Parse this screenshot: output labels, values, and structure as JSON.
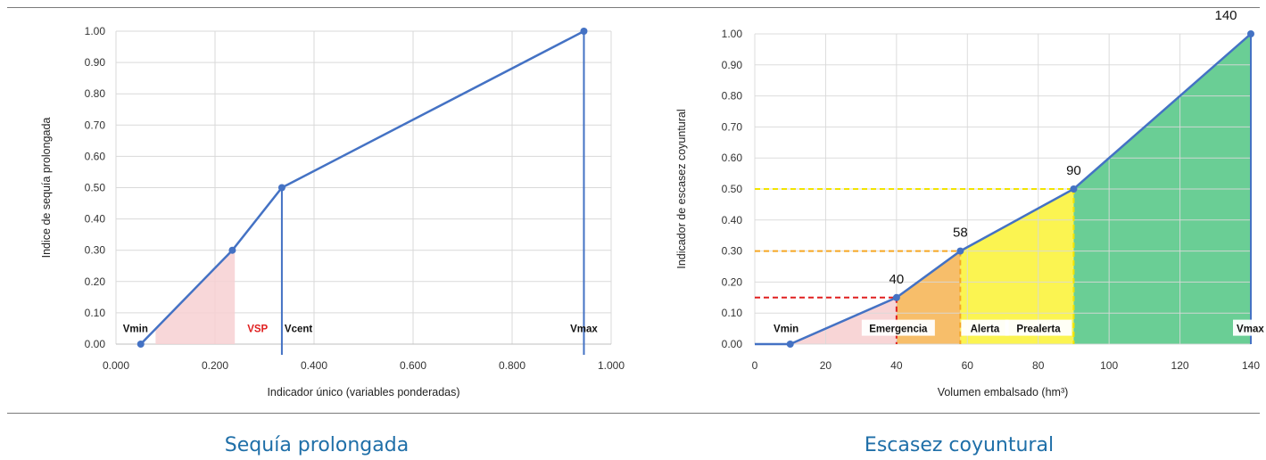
{
  "captions": [
    "Sequía prolongada",
    "Escasez coyuntural"
  ],
  "colors": {
    "line": "#4472c4",
    "caption": "#1f6fa8",
    "pink": "#f7d0d2",
    "orange": "#f6b75a",
    "yellow": "#fbf33e",
    "green": "#5ac98a",
    "red": "#e02020",
    "dashOrange": "#f5a623",
    "dashYellow": "#f2e400"
  },
  "chart_data": [
    {
      "type": "line",
      "xlabel": "Indicador único (variables ponderadas)",
      "ylabel": "Indice de sequía prolongada",
      "xlim": [
        0,
        1
      ],
      "ylim": [
        0,
        1
      ],
      "xticks": [
        "0.000",
        "0.200",
        "0.400",
        "0.600",
        "0.800",
        "1.000"
      ],
      "yticks": [
        "0.00",
        "0.10",
        "0.20",
        "0.30",
        "0.40",
        "0.50",
        "0.60",
        "0.70",
        "0.80",
        "0.90",
        "1.00"
      ],
      "points": [
        {
          "x": 0.05,
          "y": 0.0
        },
        {
          "x": 0.235,
          "y": 0.3
        },
        {
          "x": 0.335,
          "y": 0.5
        },
        {
          "x": 0.945,
          "y": 1.0
        }
      ],
      "threshold_labels": [
        {
          "text": "Vmin",
          "x": 0.05,
          "color": "#111111"
        },
        {
          "text": "VSP",
          "x": 0.24,
          "color": "#e02020"
        },
        {
          "text": "Vcent",
          "x": 0.335,
          "color": "#111111"
        },
        {
          "text": "Vmax",
          "x": 0.945,
          "color": "#111111"
        }
      ],
      "shaded_area": {
        "from": 0.08,
        "to": 0.24,
        "color": "#f7d0d2"
      }
    },
    {
      "type": "area",
      "xlabel": "Volumen embalsado (hm³)",
      "ylabel": "Indicador de escasez coyuntural",
      "xlim": [
        0,
        140
      ],
      "ylim": [
        0,
        1
      ],
      "xticks": [
        "0",
        "20",
        "40",
        "60",
        "80",
        "100",
        "120",
        "140"
      ],
      "yticks": [
        "0.00",
        "0.10",
        "0.20",
        "0.30",
        "0.40",
        "0.50",
        "0.60",
        "0.70",
        "0.80",
        "0.90",
        "1.00"
      ],
      "points": [
        {
          "x": 0,
          "y": 0.0
        },
        {
          "x": 10,
          "y": 0.0
        },
        {
          "x": 40,
          "y": 0.15
        },
        {
          "x": 58,
          "y": 0.3
        },
        {
          "x": 90,
          "y": 0.5
        },
        {
          "x": 140,
          "y": 1.0
        }
      ],
      "value_labels": [
        {
          "text": "40",
          "x": 40,
          "y": 0.15
        },
        {
          "text": "58",
          "x": 58,
          "y": 0.3
        },
        {
          "text": "90",
          "x": 90,
          "y": 0.5
        },
        {
          "text": "140",
          "x": 140,
          "y": 1.0
        }
      ],
      "zones": [
        {
          "label": "Vmin",
          "from": 10,
          "to": 40,
          "color": "#f7d0d2"
        },
        {
          "label": "Emergencia",
          "from": 40,
          "to": 58,
          "color": "#f6b75a"
        },
        {
          "label": "Alerta",
          "from": 58,
          "to": 90,
          "color": "#fbf33e"
        },
        {
          "label": "Prealerta",
          "from": 90,
          "to": 140,
          "color": "#5ac98a"
        }
      ],
      "zone_tags": [
        {
          "text": "Vmin",
          "x": 10
        },
        {
          "text": "Emergencia",
          "x": 40
        },
        {
          "text": "Alerta",
          "x": 58
        },
        {
          "text": "Prealerta",
          "x": 90
        },
        {
          "text": "Vmax",
          "x": 140
        }
      ],
      "dashed_guides": [
        {
          "x": 40,
          "y": 0.15,
          "color": "#e02020"
        },
        {
          "x": 58,
          "y": 0.3,
          "color": "#f5a623"
        },
        {
          "x": 90,
          "y": 0.5,
          "color": "#f2e400"
        }
      ]
    }
  ]
}
